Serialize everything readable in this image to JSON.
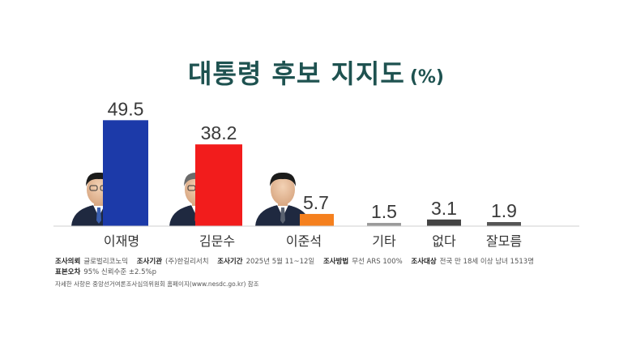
{
  "title": "대통령 후보 지지도",
  "unit": "(%)",
  "chart_data": {
    "type": "bar",
    "categories": [
      "이재명",
      "김문수",
      "이준석",
      "기타",
      "없다",
      "잘모름"
    ],
    "values": [
      49.5,
      38.2,
      5.7,
      1.5,
      3.1,
      1.9
    ],
    "value_labels": [
      "49.5",
      "38.2",
      "5.7",
      "1.5",
      "3.1",
      "1.9"
    ],
    "colors": [
      "#1c3aa9",
      "#f21c1c",
      "#f5801e",
      "#9a9a9a",
      "#444444",
      "#555555"
    ],
    "ylim": [
      0,
      50
    ],
    "grid": false,
    "legend": "none"
  },
  "meta": {
    "client_label": "조사의뢰",
    "client": "글로벌리코노믹",
    "agency_label": "조사기관",
    "agency": "(주)한길리서치",
    "period_label": "조사기간",
    "period": "2025년 5월 11~12일",
    "method_label": "조사방법",
    "method": "무선 ARS 100%",
    "target_label": "조사대상",
    "target": "전국 만 18세 이상 남녀 1513명",
    "error_label": "표본오차",
    "error": "95% 신뢰수준 ±2.5%p"
  },
  "note": "자세한 사항은 중앙선거여론조사심의위원회 홈페이지(www.nesdc.go.kr) 참조"
}
